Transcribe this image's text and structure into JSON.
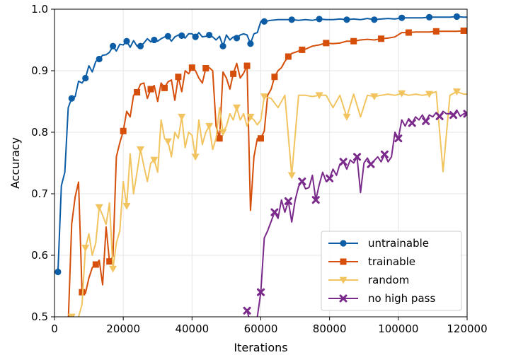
{
  "chart_data": {
    "type": "line",
    "xlabel": "Iterations",
    "ylabel": "Accuracy",
    "xlim": [
      0,
      120000
    ],
    "ylim": [
      0.5,
      1.0
    ],
    "xticks": [
      0,
      20000,
      40000,
      60000,
      80000,
      100000,
      120000
    ],
    "xtick_labels": [
      "0",
      "20000",
      "40000",
      "60000",
      "80000",
      "100000",
      "120000"
    ],
    "yticks": [
      0.5,
      0.6,
      0.7,
      0.8,
      0.9,
      1.0
    ],
    "ytick_labels": [
      "0.5",
      "0.6",
      "0.7",
      "0.8",
      "0.9",
      "1.0"
    ],
    "grid": true,
    "legend": "bottom-right",
    "series": [
      {
        "name": "untrainable",
        "color": "#0c5da5",
        "marker": "circle",
        "x": [
          1000,
          2000,
          3000,
          4000,
          5000,
          6000,
          7000,
          8000,
          9000,
          10000,
          11000,
          12000,
          13000,
          14000,
          15000,
          16000,
          17000,
          18000,
          19000,
          20000,
          21000,
          22000,
          23000,
          24000,
          25000,
          26000,
          27000,
          28000,
          29000,
          30000,
          31000,
          32000,
          33000,
          34000,
          35000,
          36000,
          37000,
          38000,
          39000,
          40000,
          41000,
          42000,
          43000,
          44000,
          45000,
          46000,
          47000,
          48000,
          49000,
          50000,
          51000,
          52000,
          53000,
          54000,
          55000,
          56000,
          57000,
          58000,
          59000,
          60000,
          61000,
          63000,
          65000,
          67000,
          69000,
          71000,
          73000,
          75000,
          77000,
          79000,
          81000,
          83000,
          85000,
          87000,
          89000,
          91000,
          93000,
          95000,
          97000,
          99000,
          101000,
          103000,
          105000,
          107000,
          109000,
          111000,
          113000,
          115000,
          117000,
          119000,
          120000
        ],
        "y": [
          0.573,
          0.713,
          0.735,
          0.84,
          0.855,
          0.858,
          0.883,
          0.88,
          0.888,
          0.908,
          0.898,
          0.915,
          0.919,
          0.925,
          0.926,
          0.93,
          0.94,
          0.932,
          0.943,
          0.942,
          0.948,
          0.938,
          0.949,
          0.94,
          0.94,
          0.945,
          0.952,
          0.947,
          0.95,
          0.948,
          0.952,
          0.955,
          0.956,
          0.948,
          0.955,
          0.958,
          0.957,
          0.953,
          0.96,
          0.96,
          0.955,
          0.962,
          0.955,
          0.956,
          0.958,
          0.955,
          0.95,
          0.956,
          0.94,
          0.958,
          0.95,
          0.955,
          0.953,
          0.958,
          0.96,
          0.958,
          0.944,
          0.96,
          0.962,
          0.98,
          0.98,
          0.982,
          0.983,
          0.983,
          0.983,
          0.982,
          0.983,
          0.982,
          0.984,
          0.983,
          0.983,
          0.984,
          0.983,
          0.984,
          0.983,
          0.985,
          0.983,
          0.984,
          0.985,
          0.984,
          0.986,
          0.986,
          0.986,
          0.986,
          0.987,
          0.987,
          0.987,
          0.987,
          0.988,
          0.987,
          0.987
        ]
      },
      {
        "name": "trainable",
        "color": "#d54e0a",
        "marker": "square",
        "x": [
          4000,
          5000,
          6000,
          7000,
          8000,
          9000,
          10000,
          11000,
          12000,
          13000,
          14000,
          15000,
          16000,
          17000,
          18000,
          19000,
          20000,
          21000,
          22000,
          23000,
          24000,
          25000,
          26000,
          27000,
          28000,
          29000,
          30000,
          31000,
          32000,
          33000,
          34000,
          35000,
          36000,
          37000,
          38000,
          39000,
          40000,
          41000,
          42000,
          43000,
          44000,
          45000,
          46000,
          47000,
          48000,
          49000,
          50000,
          51000,
          52000,
          53000,
          54000,
          55000,
          56000,
          57000,
          58000,
          59000,
          60000,
          61000,
          62000,
          63000,
          64000,
          65000,
          66000,
          67000,
          68000,
          69000,
          70000,
          71000,
          72000,
          73000,
          75000,
          77000,
          79000,
          81000,
          83000,
          85000,
          87000,
          89000,
          91000,
          93000,
          95000,
          97000,
          99000,
          101000,
          103000,
          105000,
          107000,
          109000,
          111000,
          113000,
          115000,
          117000,
          119000,
          120000
        ],
        "y": [
          0.49,
          0.651,
          0.695,
          0.719,
          0.54,
          0.538,
          0.563,
          0.58,
          0.585,
          0.592,
          0.552,
          0.646,
          0.59,
          0.598,
          0.76,
          0.783,
          0.802,
          0.834,
          0.825,
          0.86,
          0.865,
          0.878,
          0.88,
          0.855,
          0.87,
          0.876,
          0.85,
          0.88,
          0.872,
          0.882,
          0.885,
          0.852,
          0.89,
          0.866,
          0.9,
          0.895,
          0.905,
          0.9,
          0.888,
          0.88,
          0.904,
          0.905,
          0.9,
          0.81,
          0.79,
          0.898,
          0.888,
          0.87,
          0.895,
          0.912,
          0.888,
          0.896,
          0.908,
          0.673,
          0.76,
          0.79,
          0.79,
          0.802,
          0.86,
          0.87,
          0.89,
          0.9,
          0.905,
          0.915,
          0.923,
          0.928,
          0.93,
          0.932,
          0.934,
          0.935,
          0.94,
          0.942,
          0.945,
          0.944,
          0.945,
          0.948,
          0.948,
          0.95,
          0.951,
          0.95,
          0.952,
          0.953,
          0.955,
          0.962,
          0.962,
          0.963,
          0.963,
          0.963,
          0.964,
          0.964,
          0.964,
          0.964,
          0.965,
          0.965
        ]
      },
      {
        "name": "random",
        "color": "#f2c45f",
        "marker": "triangle-down",
        "x": [
          5000,
          6000,
          7000,
          8000,
          9000,
          10000,
          11000,
          12000,
          13000,
          14000,
          15000,
          16000,
          17000,
          18000,
          19000,
          20000,
          21000,
          22000,
          23000,
          24000,
          25000,
          26000,
          27000,
          28000,
          29000,
          30000,
          31000,
          32000,
          33000,
          34000,
          35000,
          36000,
          37000,
          38000,
          39000,
          40000,
          41000,
          42000,
          43000,
          44000,
          45000,
          46000,
          47000,
          48000,
          49000,
          50000,
          51000,
          52000,
          53000,
          54000,
          55000,
          56000,
          57000,
          58000,
          59000,
          60000,
          61000,
          63000,
          65000,
          67000,
          69000,
          71000,
          73000,
          75000,
          77000,
          79000,
          81000,
          83000,
          85000,
          87000,
          89000,
          91000,
          93000,
          95000,
          97000,
          99000,
          101000,
          103000,
          105000,
          107000,
          109000,
          111000,
          113000,
          115000,
          117000,
          119000,
          120000
        ],
        "y": [
          0.5,
          0.48,
          0.5,
          0.52,
          0.612,
          0.635,
          0.6,
          0.62,
          0.678,
          0.665,
          0.65,
          0.685,
          0.578,
          0.62,
          0.64,
          0.72,
          0.68,
          0.765,
          0.7,
          0.735,
          0.772,
          0.745,
          0.72,
          0.75,
          0.755,
          0.735,
          0.82,
          0.79,
          0.785,
          0.76,
          0.8,
          0.79,
          0.825,
          0.775,
          0.8,
          0.795,
          0.76,
          0.82,
          0.78,
          0.8,
          0.81,
          0.772,
          0.79,
          0.84,
          0.8,
          0.81,
          0.83,
          0.82,
          0.84,
          0.82,
          0.83,
          0.81,
          0.825,
          0.82,
          0.812,
          0.82,
          0.858,
          0.855,
          0.84,
          0.86,
          0.73,
          0.86,
          0.86,
          0.858,
          0.86,
          0.86,
          0.84,
          0.86,
          0.825,
          0.862,
          0.825,
          0.86,
          0.858,
          0.86,
          0.862,
          0.86,
          0.863,
          0.86,
          0.862,
          0.86,
          0.862,
          0.866,
          0.736,
          0.86,
          0.866,
          0.862,
          0.862
        ]
      },
      {
        "name": "no high pass",
        "color": "#7a2a8a",
        "marker": "x",
        "x": [
          56000,
          57000,
          58000,
          59000,
          60000,
          61000,
          62000,
          63000,
          64000,
          65000,
          66000,
          67000,
          68000,
          69000,
          70000,
          71000,
          72000,
          73000,
          74000,
          75000,
          76000,
          77000,
          78000,
          79000,
          80000,
          81000,
          82000,
          83000,
          84000,
          85000,
          86000,
          87000,
          88000,
          89000,
          90000,
          91000,
          92000,
          93000,
          94000,
          95000,
          96000,
          97000,
          98000,
          99000,
          100000,
          101000,
          102000,
          103000,
          104000,
          105000,
          106000,
          107000,
          108000,
          109000,
          110000,
          111000,
          112000,
          113000,
          114000,
          115000,
          116000,
          117000,
          118000,
          119000,
          120000
        ],
        "y": [
          0.51,
          0.49,
          0.48,
          0.5,
          0.54,
          0.628,
          0.64,
          0.655,
          0.67,
          0.66,
          0.69,
          0.67,
          0.688,
          0.654,
          0.69,
          0.712,
          0.72,
          0.708,
          0.71,
          0.73,
          0.69,
          0.715,
          0.735,
          0.72,
          0.725,
          0.74,
          0.73,
          0.748,
          0.752,
          0.74,
          0.755,
          0.75,
          0.76,
          0.702,
          0.75,
          0.758,
          0.748,
          0.754,
          0.76,
          0.752,
          0.764,
          0.752,
          0.76,
          0.8,
          0.79,
          0.82,
          0.81,
          0.822,
          0.815,
          0.825,
          0.82,
          0.828,
          0.818,
          0.828,
          0.825,
          0.832,
          0.826,
          0.834,
          0.83,
          0.83,
          0.828,
          0.836,
          0.826,
          0.83,
          0.83
        ]
      }
    ]
  }
}
